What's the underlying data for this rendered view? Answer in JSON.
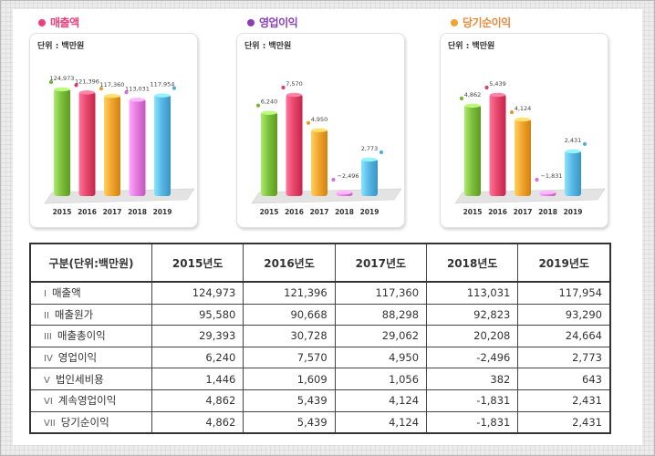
{
  "chart_data": [
    {
      "type": "bar",
      "title": "매출액",
      "unit_label": "단위 : 백만원",
      "categories": [
        "2015",
        "2016",
        "2017",
        "2018",
        "2019"
      ],
      "values": [
        124973,
        121396,
        117360,
        113031,
        117954
      ],
      "value_labels": [
        "124,973",
        "121,396",
        "117,360",
        "113,031",
        "117,954"
      ],
      "title_color": "#e8417d",
      "dot_color": "#e8417d",
      "ylim": [
        0,
        135000
      ]
    },
    {
      "type": "bar",
      "title": "영업이익",
      "unit_label": "단위 : 백만원",
      "categories": [
        "2015",
        "2016",
        "2017",
        "2018",
        "2019"
      ],
      "values": [
        6240,
        7570,
        4950,
        -2496,
        2773
      ],
      "value_labels": [
        "6,240",
        "7,570",
        "4,950",
        "−2,496",
        "2,773"
      ],
      "title_color": "#8a3fb8",
      "dot_color": "#8a3fb8",
      "ylim": [
        -2496,
        7570
      ]
    },
    {
      "type": "bar",
      "title": "당기순이익",
      "unit_label": "단위 : 백만원",
      "categories": [
        "2015",
        "2016",
        "2017",
        "2018",
        "2019"
      ],
      "values": [
        4862,
        5439,
        4124,
        -1831,
        2431
      ],
      "value_labels": [
        "4,862",
        "5,439",
        "4,124",
        "−1,831",
        "2,431"
      ],
      "title_color": "#e8883a",
      "dot_color": "#f2a531",
      "ylim": [
        -1831,
        5439
      ]
    }
  ],
  "bar_colors": [
    "#7fbf3f",
    "#e8486e",
    "#f2a531",
    "#e57be0",
    "#5ab8e6"
  ],
  "table": {
    "headers": [
      "구분(단위:백만원)",
      "2015년도",
      "2016년도",
      "2017년도",
      "2018년도",
      "2019년도"
    ],
    "rows": [
      {
        "num": "I",
        "label": "매출액",
        "values": [
          "124,973",
          "121,396",
          "117,360",
          "113,031",
          "117,954"
        ]
      },
      {
        "num": "II",
        "label": "매출원가",
        "values": [
          "95,580",
          "90,668",
          "88,298",
          "92,823",
          "93,290"
        ]
      },
      {
        "num": "III",
        "label": "매출총이익",
        "values": [
          "29,393",
          "30,728",
          "29,062",
          "20,208",
          "24,664"
        ]
      },
      {
        "num": "IV",
        "label": "영업이익",
        "values": [
          "6,240",
          "7,570",
          "4,950",
          "-2,496",
          "2,773"
        ]
      },
      {
        "num": "V",
        "label": "법인세비용",
        "values": [
          "1,446",
          "1,609",
          "1,056",
          "382",
          "643"
        ]
      },
      {
        "num": "VI",
        "label": "계속영업이익",
        "values": [
          "4,862",
          "5,439",
          "4,124",
          "-1,831",
          "2,431"
        ]
      },
      {
        "num": "VII",
        "label": "당기순이익",
        "values": [
          "4,862",
          "5,439",
          "4,124",
          "-1,831",
          "2,431"
        ]
      }
    ]
  }
}
